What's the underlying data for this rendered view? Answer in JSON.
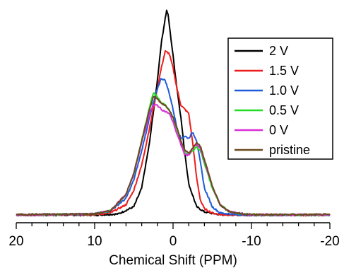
{
  "chart_data": {
    "type": "line",
    "title": "",
    "xlabel": "Chemical Shift (PPM)",
    "ylabel": "",
    "xlim": [
      20,
      -20
    ],
    "ylim": [
      0,
      1
    ],
    "x_reversed": true,
    "xticks": [
      "20",
      "10",
      "0",
      "-10",
      "-20"
    ],
    "grid": false,
    "legend_position": "top-right",
    "series": [
      {
        "name": "2 V",
        "color": "#000000",
        "x": [
          20,
          10,
          7,
          5,
          4,
          3,
          2,
          1.5,
          1,
          0.8,
          0.6,
          0.4,
          0,
          -0.5,
          -1,
          -1.5,
          -2,
          -3,
          -4,
          -6,
          -10,
          -20
        ],
        "y": [
          0.01,
          0.01,
          0.015,
          0.05,
          0.14,
          0.36,
          0.66,
          0.84,
          0.96,
          1.0,
          0.97,
          0.9,
          0.78,
          0.62,
          0.48,
          0.31,
          0.16,
          0.05,
          0.025,
          0.012,
          0.01,
          0.01
        ]
      },
      {
        "name": "1.5 V",
        "color": "#ee1c1c",
        "x": [
          20,
          10,
          8,
          6,
          5,
          4,
          3,
          2,
          1.5,
          1,
          0.5,
          0,
          -0.5,
          -1,
          -1.5,
          -2,
          -2.5,
          -3,
          -3.5,
          -4,
          -5,
          -6,
          -8,
          -10,
          -20
        ],
        "y": [
          0.01,
          0.012,
          0.02,
          0.06,
          0.13,
          0.25,
          0.43,
          0.62,
          0.72,
          0.8,
          0.79,
          0.72,
          0.62,
          0.54,
          0.52,
          0.5,
          0.36,
          0.19,
          0.08,
          0.04,
          0.02,
          0.012,
          0.01,
          0.01,
          0.01
        ]
      },
      {
        "name": "1.0 V",
        "color": "#1e5bdb",
        "x": [
          20,
          10,
          8,
          6,
          5,
          4,
          3,
          2,
          1.5,
          1,
          0.5,
          0,
          -0.5,
          -1,
          -1.5,
          -2,
          -2.5,
          -3,
          -3.5,
          -4,
          -5,
          -6,
          -8,
          -10,
          -20
        ],
        "y": [
          0.01,
          0.015,
          0.03,
          0.09,
          0.18,
          0.32,
          0.48,
          0.62,
          0.67,
          0.66,
          0.6,
          0.52,
          0.43,
          0.38,
          0.39,
          0.38,
          0.41,
          0.37,
          0.26,
          0.14,
          0.05,
          0.02,
          0.012,
          0.01,
          0.01
        ]
      },
      {
        "name": "0.5 V",
        "color": "#22dd22",
        "x": [
          20,
          10,
          8,
          6,
          5,
          4,
          3,
          2.5,
          2,
          1.5,
          1,
          0.5,
          0,
          -0.5,
          -1,
          -1.5,
          -2,
          -2.5,
          -3,
          -3.5,
          -4,
          -5,
          -6,
          -7,
          -8,
          -10,
          -20
        ],
        "y": [
          0.01,
          0.015,
          0.03,
          0.11,
          0.21,
          0.37,
          0.53,
          0.6,
          0.58,
          0.55,
          0.54,
          0.52,
          0.48,
          0.42,
          0.36,
          0.31,
          0.3,
          0.32,
          0.34,
          0.32,
          0.26,
          0.14,
          0.06,
          0.03,
          0.02,
          0.012,
          0.01
        ]
      },
      {
        "name": "0 V",
        "color": "#d82fd8",
        "x": [
          20,
          10,
          8,
          6,
          5,
          4,
          3,
          2.5,
          2,
          1.5,
          1,
          0.5,
          0,
          -0.5,
          -1,
          -1.5,
          -2,
          -2.5,
          -3,
          -3.5,
          -4,
          -5,
          -6,
          -7,
          -8,
          -10,
          -20
        ],
        "y": [
          0.01,
          0.015,
          0.03,
          0.11,
          0.21,
          0.36,
          0.5,
          0.54,
          0.54,
          0.52,
          0.51,
          0.5,
          0.46,
          0.4,
          0.35,
          0.3,
          0.3,
          0.33,
          0.35,
          0.33,
          0.27,
          0.15,
          0.06,
          0.03,
          0.02,
          0.012,
          0.01
        ]
      },
      {
        "name": "pristine",
        "color": "#6b4a1e",
        "x": [
          20,
          10,
          8,
          6,
          5,
          4,
          3,
          2.5,
          2,
          1.5,
          1,
          0.5,
          0,
          -0.5,
          -1,
          -1.5,
          -2,
          -2.5,
          -3,
          -3.5,
          -4,
          -5,
          -6,
          -7,
          -8,
          -10,
          -20
        ],
        "y": [
          0.012,
          0.015,
          0.03,
          0.11,
          0.21,
          0.37,
          0.52,
          0.58,
          0.57,
          0.55,
          0.54,
          0.52,
          0.48,
          0.43,
          0.37,
          0.32,
          0.31,
          0.33,
          0.36,
          0.34,
          0.28,
          0.15,
          0.06,
          0.03,
          0.02,
          0.012,
          0.012
        ]
      }
    ]
  }
}
